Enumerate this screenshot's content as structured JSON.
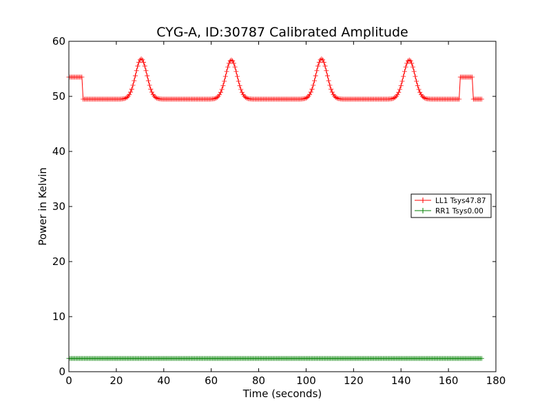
{
  "chart_data": {
    "type": "line",
    "title": "CYG-A, ID:30787 Calibrated Amplitude",
    "xlabel": "Time (seconds)",
    "ylabel": "Power in Kelvin",
    "xlim": [
      0,
      180
    ],
    "ylim": [
      0,
      60
    ],
    "xticks": [
      0,
      20,
      40,
      60,
      80,
      100,
      120,
      140,
      160,
      180
    ],
    "yticks": [
      0,
      10,
      20,
      30,
      40,
      50,
      60
    ],
    "grid": false,
    "legend_position": "right",
    "marker": "plus",
    "series": [
      {
        "name": "LL1 Tsys47.87",
        "color": "#ff0000",
        "x_start": 0,
        "x_end": 174,
        "x_step": 0.5,
        "baseline": 49.5,
        "step_segments": [
          {
            "x_from": 0,
            "x_to": 5.5,
            "value": 53.5
          },
          {
            "x_from": 165,
            "x_to": 170,
            "value": 53.5
          }
        ],
        "peaks": [
          {
            "center": 30.5,
            "height": 56.8,
            "width": 2.4
          },
          {
            "center": 68.5,
            "height": 56.6,
            "width": 2.4
          },
          {
            "center": 106.5,
            "height": 56.8,
            "width": 2.4
          },
          {
            "center": 143.5,
            "height": 56.6,
            "width": 2.4
          }
        ]
      },
      {
        "name": "RR1 Tsys0.00",
        "color": "#008000",
        "x_start": 0,
        "x_end": 174,
        "x_step": 0.5,
        "baseline": 2.4,
        "step_segments": [],
        "peaks": []
      }
    ]
  }
}
